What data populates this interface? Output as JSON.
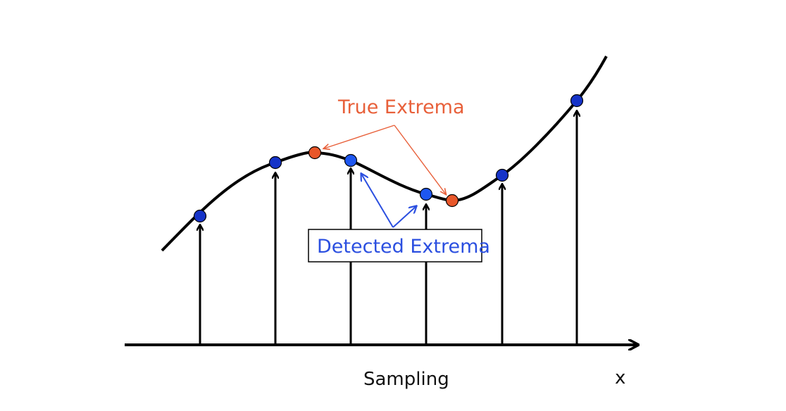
{
  "labels": {
    "true_extrema": "True Extrema",
    "detected_extrema": "Detected Extrema",
    "sampling": "Sampling",
    "x_axis": "x"
  },
  "colors": {
    "curve": "#000000",
    "sample_point": "#1533C8",
    "detected_point": "#1E57F0",
    "true_point": "#E8572A",
    "true_label": "#E8603A",
    "detected_label": "#2B4FE0"
  },
  "sample_count": 6
}
